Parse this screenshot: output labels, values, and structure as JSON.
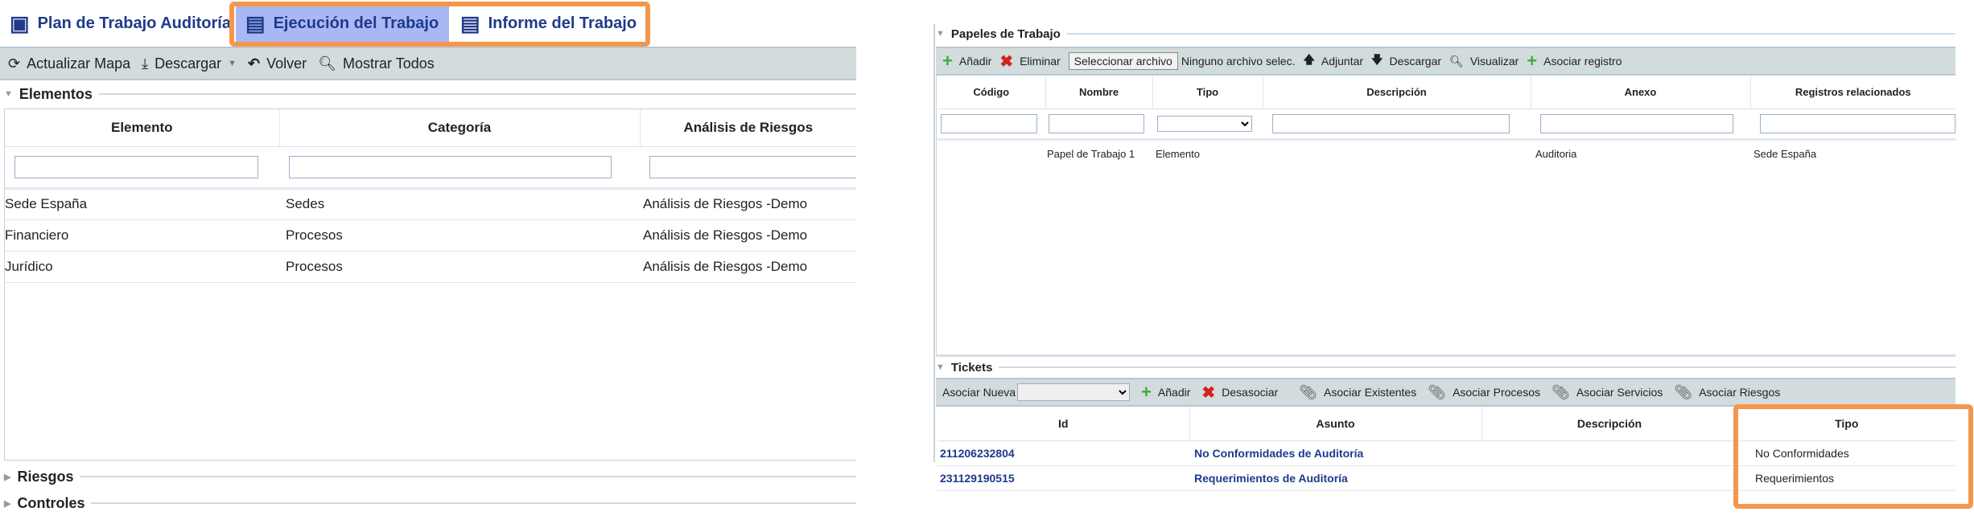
{
  "tabs": [
    {
      "label": "Plan de Trabajo Auditoría",
      "icon": "bookmark-check-icon"
    },
    {
      "label": "Ejecución del Trabajo",
      "icon": "form-icon",
      "active": true
    },
    {
      "label": "Informe del Trabajo",
      "icon": "folder-text-icon"
    }
  ],
  "colors": {
    "highlight": "#f5974a",
    "active_tab": "#a9b8f5",
    "toolbar": "#d3dcdc",
    "link": "#1f3a8a"
  },
  "left_toolbar": {
    "refresh": "Actualizar Mapa",
    "download": "Descargar",
    "back": "Volver",
    "show_all": "Mostrar Todos"
  },
  "elementos": {
    "title": "Elementos",
    "columns": [
      "Elemento",
      "Categoría",
      "Análisis de Riesgos"
    ],
    "rows": [
      [
        "Sede España",
        "Sedes",
        "Análisis de Riesgos -Demo"
      ],
      [
        "Financiero",
        "Procesos",
        "Análisis de Riesgos -Demo"
      ],
      [
        "Jurídico",
        "Procesos",
        "Análisis de Riesgos -Demo"
      ]
    ]
  },
  "riesgos": {
    "title": "Riesgos"
  },
  "controles": {
    "title": "Controles"
  },
  "papeles": {
    "title": "Papeles de Trabajo",
    "toolbar": {
      "add": "Añadir",
      "delete": "Eliminar",
      "choose_file": "Seleccionar archivo",
      "no_file": "Ninguno archivo selec.",
      "attach": "Adjuntar",
      "download": "Descargar",
      "view": "Visualizar",
      "associate": "Asociar registro"
    },
    "columns": [
      "Código",
      "Nombre",
      "Tipo",
      "Descripción",
      "Anexo",
      "Registros relacionados"
    ],
    "rows": [
      [
        "",
        "Papel de Trabajo 1",
        "Elemento",
        "",
        "Auditoria",
        "Sede España"
      ]
    ]
  },
  "tickets": {
    "title": "Tickets",
    "toolbar": {
      "new_label": "Asociar Nueva",
      "add": "Añadir",
      "unlink": "Desasociar",
      "existing": "Asociar Existentes",
      "processes": "Asociar Procesos",
      "services": "Asociar Servicios",
      "risks": "Asociar Riesgos"
    },
    "columns": [
      "Id",
      "Asunto",
      "Descripción",
      "Tipo"
    ],
    "rows": [
      [
        "211206232804",
        "No Conformidades de Auditoría",
        "",
        "No Conformidades"
      ],
      [
        "231129190515",
        "Requerimientos de Auditoría",
        "",
        "Requerimientos"
      ]
    ]
  }
}
